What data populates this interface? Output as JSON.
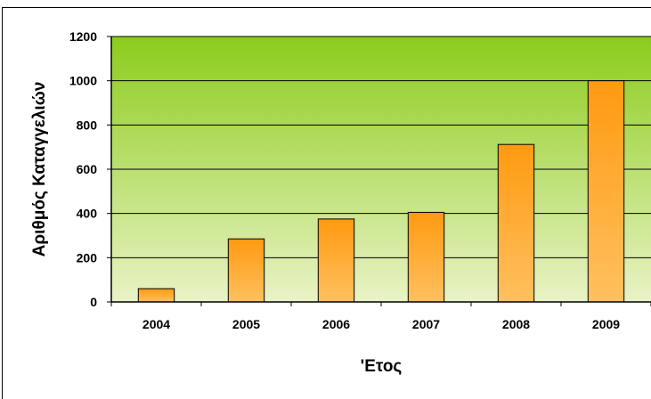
{
  "chart_data": {
    "type": "bar",
    "title": "",
    "xlabel": "'Ετος",
    "ylabel": "Αριθμός Καταγγελιών",
    "categories": [
      "2004",
      "2005",
      "2006",
      "2007",
      "2008",
      "2009"
    ],
    "series": [
      {
        "values": [
          60,
          285,
          375,
          405,
          712,
          1000
        ]
      }
    ],
    "ylim": [
      0,
      1200
    ],
    "yticks": [
      0,
      200,
      400,
      600,
      800,
      1000,
      1200
    ],
    "grid": true,
    "legend": "none",
    "colors": {
      "bar_top": "#ff9a10",
      "bar_bottom": "#ffc060",
      "bar_stroke": "#000000",
      "plot_bg_top": "#8ccc1c",
      "plot_bg_bottom": "#e9f3c6"
    }
  }
}
